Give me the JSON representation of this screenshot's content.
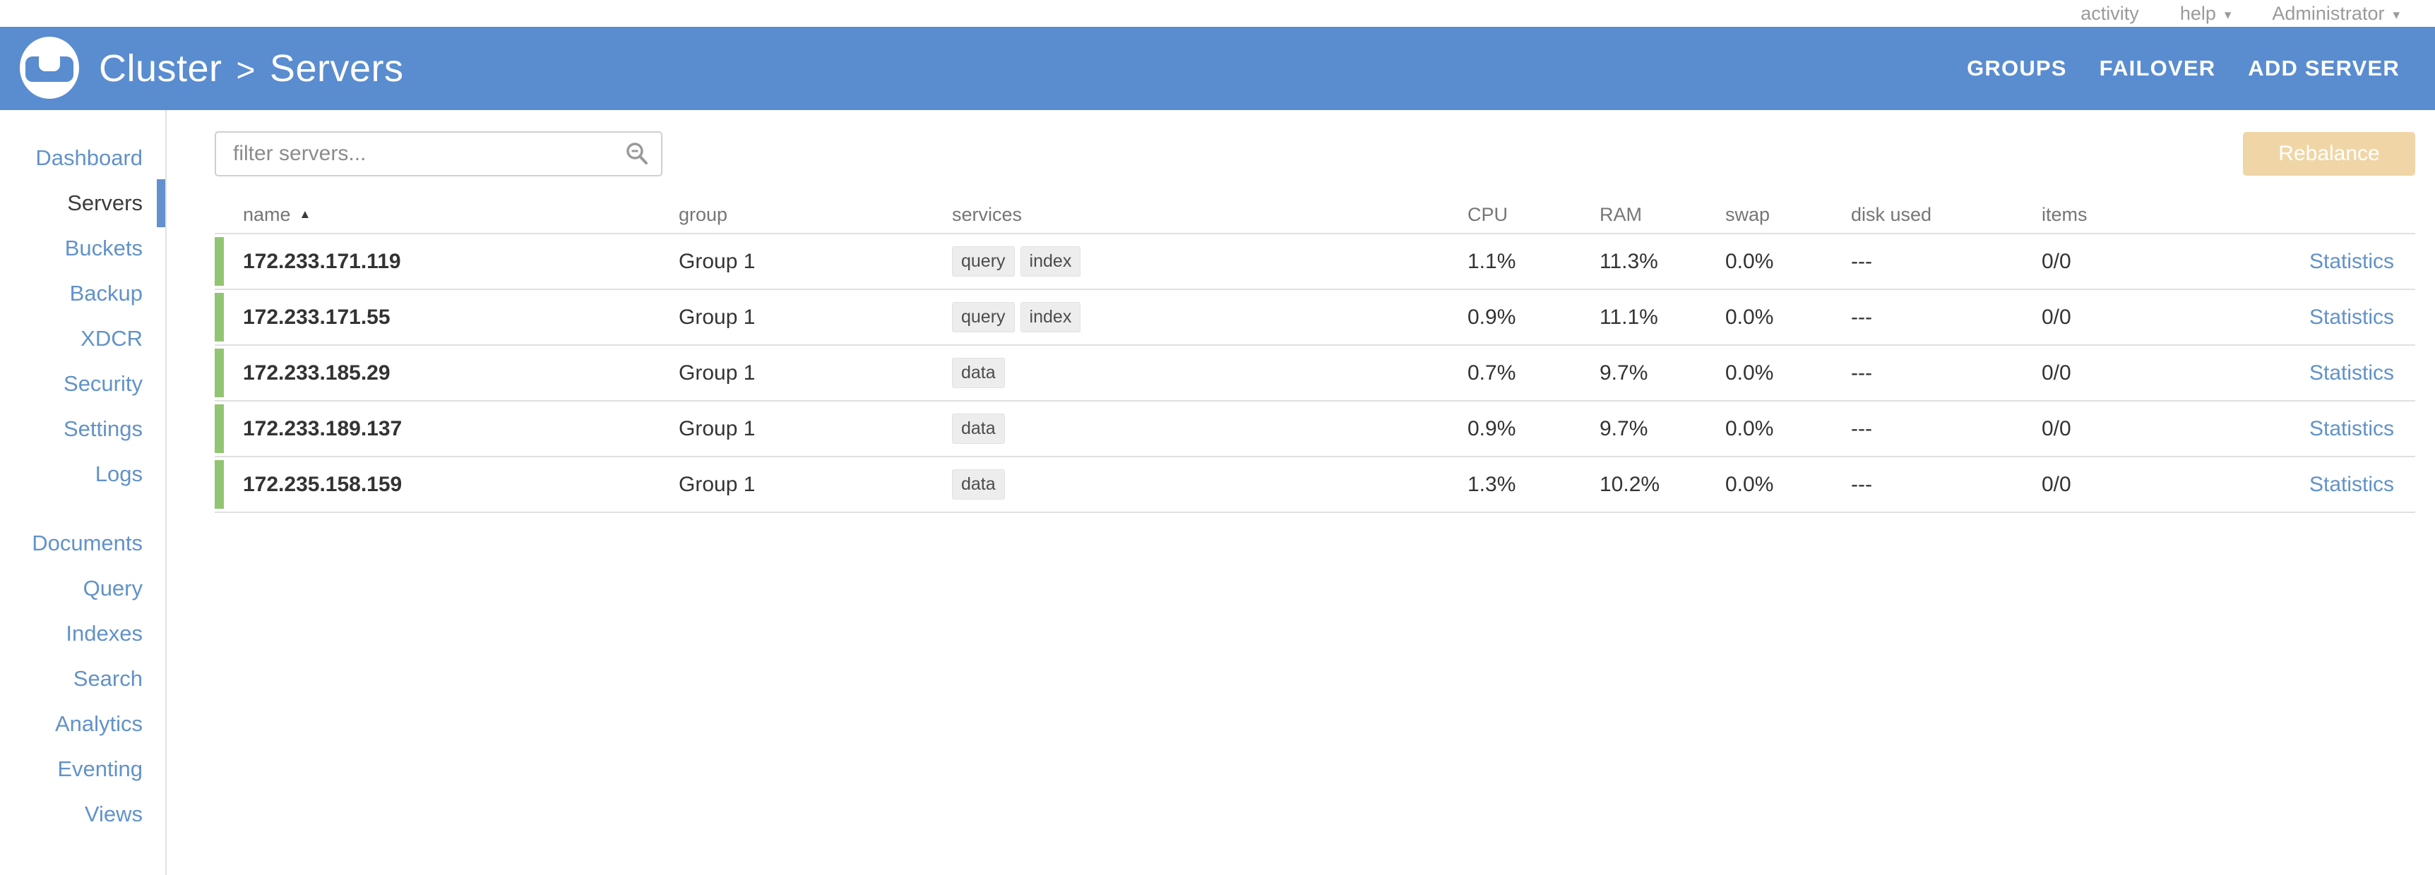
{
  "topbar": {
    "activity_label": "activity",
    "help_label": "help",
    "user_label": "Administrator",
    "caret_icon": "▾"
  },
  "header": {
    "title": {
      "cluster": "Cluster",
      "separator": ">",
      "page": "Servers"
    },
    "actions": {
      "groups": "GROUPS",
      "failover": "FAILOVER",
      "add_server": "ADD SERVER"
    }
  },
  "sidebar": {
    "groups": [
      {
        "items": [
          {
            "label": "Dashboard"
          },
          {
            "label": "Servers",
            "selected": true
          },
          {
            "label": "Buckets"
          },
          {
            "label": "Backup"
          },
          {
            "label": "XDCR"
          },
          {
            "label": "Security"
          },
          {
            "label": "Settings"
          },
          {
            "label": "Logs"
          }
        ]
      },
      {
        "items": [
          {
            "label": "Documents"
          },
          {
            "label": "Query"
          },
          {
            "label": "Indexes"
          },
          {
            "label": "Search"
          },
          {
            "label": "Analytics"
          },
          {
            "label": "Eventing"
          },
          {
            "label": "Views"
          }
        ]
      }
    ]
  },
  "toolbar": {
    "filter_placeholder": "filter servers...",
    "rebalance_label": "Rebalance"
  },
  "table": {
    "columns": [
      "name",
      "group",
      "services",
      "CPU",
      "RAM",
      "swap",
      "disk used",
      "items"
    ],
    "sort_indicator": "▲",
    "rows": [
      {
        "name": "172.233.171.119",
        "group": "Group 1",
        "services": [
          "query",
          "index"
        ],
        "cpu": "1.1%",
        "ram": "11.3%",
        "swap": "0.0%",
        "disk_used": "---",
        "items": "0/0",
        "statistics": "Statistics",
        "status": "healthy"
      },
      {
        "name": "172.233.171.55",
        "group": "Group 1",
        "services": [
          "query",
          "index"
        ],
        "cpu": "0.9%",
        "ram": "11.1%",
        "swap": "0.0%",
        "disk_used": "---",
        "items": "0/0",
        "statistics": "Statistics",
        "status": "healthy"
      },
      {
        "name": "172.233.185.29",
        "group": "Group 1",
        "services": [
          "data"
        ],
        "cpu": "0.7%",
        "ram": "9.7%",
        "swap": "0.0%",
        "disk_used": "---",
        "items": "0/0",
        "statistics": "Statistics",
        "status": "healthy"
      },
      {
        "name": "172.233.189.137",
        "group": "Group 1",
        "services": [
          "data"
        ],
        "cpu": "0.9%",
        "ram": "9.7%",
        "swap": "0.0%",
        "disk_used": "---",
        "items": "0/0",
        "statistics": "Statistics",
        "status": "healthy"
      },
      {
        "name": "172.235.158.159",
        "group": "Group 1",
        "services": [
          "data"
        ],
        "cpu": "1.3%",
        "ram": "10.2%",
        "swap": "0.0%",
        "disk_used": "---",
        "items": "0/0",
        "statistics": "Statistics",
        "status": "healthy"
      }
    ]
  },
  "colors": {
    "header_blue": "#5A8CD0",
    "link_blue": "#6292C8",
    "selected_bar": "#6590CE",
    "status_green": "#92C572",
    "rebalance_bg": "#F0D6A6",
    "topbar_text": "#9A9A9A",
    "table_header_text": "#767676",
    "row_border": "#E0E0E0",
    "tag_bg": "#EDEDED"
  }
}
